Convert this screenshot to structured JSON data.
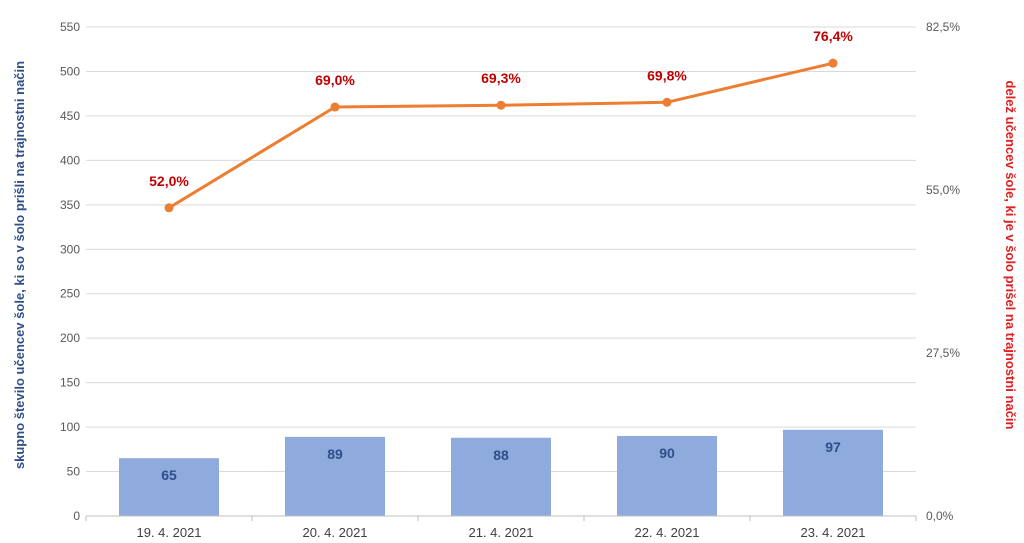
{
  "chart_data": {
    "type": "bar+line",
    "categories": [
      "19. 4. 2021",
      "20. 4. 2021",
      "21. 4. 2021",
      "22. 4. 2021",
      "23. 4. 2021"
    ],
    "series": [
      {
        "type": "bar",
        "axis": "left",
        "values": [
          65,
          89,
          88,
          90,
          97
        ],
        "labels": [
          "65",
          "89",
          "88",
          "90",
          "97"
        ],
        "color": "#8faadc"
      },
      {
        "type": "line",
        "axis": "right",
        "values": [
          52.0,
          69.0,
          69.3,
          69.8,
          76.4
        ],
        "labels": [
          "52,0%",
          "69,0%",
          "69,3%",
          "69,8%",
          "76,4%"
        ],
        "color": "#ed7d31"
      }
    ],
    "ylabel_left": "skupno število učencev šole, ki so v šolo prišli na trajnostni način",
    "ylabel_right": "delež učencev šole, ki je v šolo prišel na trajnostni način",
    "ylim_left": [
      0,
      550
    ],
    "yticks_left": [
      "0",
      "50",
      "100",
      "150",
      "200",
      "250",
      "300",
      "350",
      "400",
      "450",
      "500",
      "550"
    ],
    "ylim_right": [
      0,
      82.5
    ],
    "yticks_right": [
      "0,0%",
      "27,5%",
      "55,0%",
      "82,5%"
    ],
    "grid": true,
    "label_color_left": "#2f4f8a",
    "label_color_right": "#e02020"
  }
}
